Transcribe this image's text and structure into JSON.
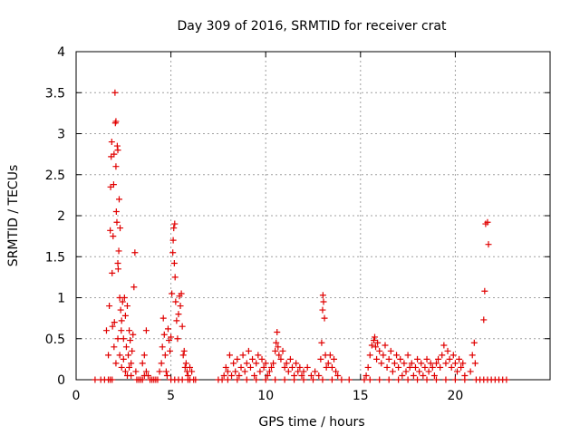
{
  "chart_data": {
    "type": "scatter",
    "title": "Day 309 of 2016, SRMTID for receiver crat",
    "xlabel": "GPS time / hours",
    "ylabel": "SRMTID / TECUs",
    "xlim": [
      0,
      25
    ],
    "ylim": [
      0,
      4
    ],
    "xticks": [
      0,
      5,
      10,
      15,
      20
    ],
    "yticks": [
      0,
      0.5,
      1,
      1.5,
      2,
      2.5,
      3,
      3.5,
      4
    ],
    "ytick_labels": [
      "0",
      "0.5",
      "1",
      "1.5",
      "2",
      "2.5",
      "3",
      "3.5",
      "4"
    ],
    "grid": true,
    "marker": "+",
    "series": [
      {
        "name": "SRMTID",
        "color": "#e00000",
        "points": [
          [
            1.0,
            0
          ],
          [
            1.3,
            0
          ],
          [
            1.5,
            0
          ],
          [
            1.7,
            0
          ],
          [
            1.8,
            0
          ],
          [
            1.9,
            0
          ],
          [
            1.6,
            0.6
          ],
          [
            1.7,
            0.3
          ],
          [
            1.75,
            0.9
          ],
          [
            1.8,
            1.82
          ],
          [
            1.82,
            2.35
          ],
          [
            1.85,
            2.72
          ],
          [
            1.88,
            2.9
          ],
          [
            1.9,
            1.3
          ],
          [
            1.92,
            0.65
          ],
          [
            1.95,
            1.75
          ],
          [
            1.98,
            2.38
          ],
          [
            2.0,
            2.75
          ],
          [
            2.02,
            0.7
          ],
          [
            2.05,
            3.5
          ],
          [
            2.07,
            3.13
          ],
          [
            2.1,
            3.15
          ],
          [
            2.1,
            2.6
          ],
          [
            2.12,
            2.05
          ],
          [
            2.15,
            1.92
          ],
          [
            2.17,
            2.85
          ],
          [
            2.2,
            2.8
          ],
          [
            2.2,
            1.42
          ],
          [
            2.22,
            1.35
          ],
          [
            2.25,
            1.57
          ],
          [
            2.27,
            2.2
          ],
          [
            2.3,
            1.0
          ],
          [
            2.32,
            1.85
          ],
          [
            2.35,
            0.85
          ],
          [
            2.38,
            0.6
          ],
          [
            2.4,
            0.72
          ],
          [
            2.45,
            0.95
          ],
          [
            2.5,
            0.5
          ],
          [
            2.55,
            1.0
          ],
          [
            2.6,
            0.78
          ],
          [
            2.65,
            0.4
          ],
          [
            2.7,
            0.9
          ],
          [
            2.75,
            0.3
          ],
          [
            2.8,
            0.6
          ],
          [
            2.85,
            0.48
          ],
          [
            2.9,
            0.2
          ],
          [
            2.95,
            0.35
          ],
          [
            3.0,
            0.55
          ],
          [
            3.05,
            1.13
          ],
          [
            3.1,
            1.55
          ],
          [
            3.15,
            0.1
          ],
          [
            2.0,
            0.4
          ],
          [
            2.1,
            0.2
          ],
          [
            2.2,
            0.5
          ],
          [
            2.3,
            0.3
          ],
          [
            2.4,
            0.15
          ],
          [
            2.5,
            0.25
          ],
          [
            2.6,
            0.1
          ],
          [
            2.7,
            0.05
          ],
          [
            2.8,
            0.15
          ],
          [
            2.9,
            0.05
          ],
          [
            3.2,
            0
          ],
          [
            3.3,
            0
          ],
          [
            3.4,
            0
          ],
          [
            3.5,
            0
          ],
          [
            3.6,
            0.05
          ],
          [
            3.7,
            0.1
          ],
          [
            3.8,
            0.05
          ],
          [
            3.9,
            0
          ],
          [
            4.0,
            0
          ],
          [
            3.5,
            0.2
          ],
          [
            3.6,
            0.3
          ],
          [
            3.7,
            0.6
          ],
          [
            4.1,
            0
          ],
          [
            4.2,
            0
          ],
          [
            4.3,
            0
          ],
          [
            4.4,
            0.1
          ],
          [
            4.5,
            0.2
          ],
          [
            4.55,
            0.4
          ],
          [
            4.6,
            0.75
          ],
          [
            4.65,
            0.55
          ],
          [
            4.7,
            0.3
          ],
          [
            4.75,
            0.1
          ],
          [
            4.8,
            0.05
          ],
          [
            4.85,
            0.62
          ],
          [
            4.9,
            0.48
          ],
          [
            4.95,
            0.35
          ],
          [
            5.0,
            0.52
          ],
          [
            5.05,
            1.05
          ],
          [
            5.1,
            1.55
          ],
          [
            5.12,
            1.7
          ],
          [
            5.15,
            1.85
          ],
          [
            5.18,
            1.42
          ],
          [
            5.2,
            1.9
          ],
          [
            5.22,
            1.25
          ],
          [
            5.25,
            0.95
          ],
          [
            5.3,
            0.72
          ],
          [
            5.35,
            0.5
          ],
          [
            5.4,
            0.8
          ],
          [
            5.45,
            1.02
          ],
          [
            5.5,
            0.9
          ],
          [
            5.55,
            1.05
          ],
          [
            5.6,
            0.65
          ],
          [
            5.65,
            0.3
          ],
          [
            5.7,
            0.35
          ],
          [
            5.75,
            0.15
          ],
          [
            5.8,
            0.2
          ],
          [
            5.85,
            0.1
          ],
          [
            5.9,
            0.05
          ],
          [
            6.0,
            0.15
          ],
          [
            6.1,
            0.1
          ],
          [
            6.2,
            0
          ],
          [
            6.3,
            0
          ],
          [
            6.0,
            0
          ],
          [
            5.9,
            0
          ],
          [
            5.0,
            0
          ],
          [
            5.2,
            0
          ],
          [
            5.4,
            0
          ],
          [
            5.6,
            0
          ],
          [
            7.5,
            0
          ],
          [
            7.7,
            0
          ],
          [
            7.8,
            0.05
          ],
          [
            7.9,
            0.15
          ],
          [
            8.0,
            0.1
          ],
          [
            8.1,
            0.3
          ],
          [
            8.2,
            0.05
          ],
          [
            8.3,
            0.2
          ],
          [
            8.4,
            0.1
          ],
          [
            8.5,
            0.25
          ],
          [
            8.6,
            0.05
          ],
          [
            8.7,
            0.15
          ],
          [
            8.8,
            0.3
          ],
          [
            8.9,
            0.1
          ],
          [
            9.0,
            0.2
          ],
          [
            9.1,
            0.35
          ],
          [
            9.2,
            0.15
          ],
          [
            9.3,
            0.25
          ],
          [
            9.4,
            0.05
          ],
          [
            9.5,
            0.2
          ],
          [
            9.6,
            0.3
          ],
          [
            9.7,
            0.1
          ],
          [
            9.8,
            0.25
          ],
          [
            9.9,
            0.15
          ],
          [
            10.0,
            0.2
          ],
          [
            10.1,
            0.05
          ],
          [
            10.2,
            0.1
          ],
          [
            10.3,
            0.15
          ],
          [
            10.4,
            0.2
          ],
          [
            10.5,
            0.35
          ],
          [
            10.55,
            0.45
          ],
          [
            10.6,
            0.58
          ],
          [
            10.65,
            0.4
          ],
          [
            10.7,
            0.3
          ],
          [
            10.8,
            0.25
          ],
          [
            10.9,
            0.35
          ],
          [
            11.0,
            0.15
          ],
          [
            11.1,
            0.2
          ],
          [
            11.2,
            0.1
          ],
          [
            11.3,
            0.25
          ],
          [
            11.4,
            0.15
          ],
          [
            11.5,
            0.05
          ],
          [
            11.6,
            0.2
          ],
          [
            11.7,
            0.1
          ],
          [
            11.8,
            0.15
          ],
          [
            11.9,
            0.05
          ],
          [
            12.0,
            0.1
          ],
          [
            12.2,
            0.15
          ],
          [
            12.4,
            0.05
          ],
          [
            12.6,
            0.1
          ],
          [
            12.8,
            0.05
          ],
          [
            12.9,
            0.25
          ],
          [
            12.95,
            0.45
          ],
          [
            13.0,
            0.85
          ],
          [
            13.02,
            1.03
          ],
          [
            13.05,
            0.95
          ],
          [
            13.1,
            0.75
          ],
          [
            13.15,
            0.3
          ],
          [
            13.2,
            0.15
          ],
          [
            13.3,
            0.2
          ],
          [
            13.4,
            0.3
          ],
          [
            13.5,
            0.15
          ],
          [
            13.6,
            0.25
          ],
          [
            13.7,
            0.1
          ],
          [
            13.8,
            0.05
          ],
          [
            8.0,
            0
          ],
          [
            8.5,
            0
          ],
          [
            9.0,
            0
          ],
          [
            9.5,
            0
          ],
          [
            10.0,
            0
          ],
          [
            10.5,
            0
          ],
          [
            11.0,
            0
          ],
          [
            11.5,
            0
          ],
          [
            12.0,
            0
          ],
          [
            12.5,
            0
          ],
          [
            13.0,
            0
          ],
          [
            13.5,
            0
          ],
          [
            14.0,
            0
          ],
          [
            14.4,
            0
          ],
          [
            15.2,
            0
          ],
          [
            15.3,
            0.05
          ],
          [
            15.4,
            0.15
          ],
          [
            15.5,
            0.3
          ],
          [
            15.6,
            0.42
          ],
          [
            15.7,
            0.48
          ],
          [
            15.75,
            0.52
          ],
          [
            15.8,
            0.4
          ],
          [
            15.85,
            0.25
          ],
          [
            15.9,
            0.45
          ],
          [
            16.0,
            0.35
          ],
          [
            16.1,
            0.2
          ],
          [
            16.2,
            0.3
          ],
          [
            16.3,
            0.42
          ],
          [
            16.4,
            0.15
          ],
          [
            16.5,
            0.25
          ],
          [
            16.6,
            0.35
          ],
          [
            16.7,
            0.1
          ],
          [
            16.8,
            0.2
          ],
          [
            16.9,
            0.3
          ],
          [
            17.0,
            0.15
          ],
          [
            17.1,
            0.25
          ],
          [
            17.2,
            0.05
          ],
          [
            17.3,
            0.2
          ],
          [
            17.4,
            0.1
          ],
          [
            17.5,
            0.3
          ],
          [
            17.6,
            0.15
          ],
          [
            17.7,
            0.2
          ],
          [
            17.8,
            0.05
          ],
          [
            17.9,
            0.15
          ],
          [
            18.0,
            0.25
          ],
          [
            18.1,
            0.1
          ],
          [
            18.2,
            0.2
          ],
          [
            18.3,
            0.05
          ],
          [
            18.4,
            0.15
          ],
          [
            18.5,
            0.25
          ],
          [
            18.6,
            0.1
          ],
          [
            18.7,
            0.2
          ],
          [
            18.8,
            0.15
          ],
          [
            18.9,
            0.05
          ],
          [
            19.0,
            0.2
          ],
          [
            19.1,
            0.25
          ],
          [
            19.2,
            0.15
          ],
          [
            19.3,
            0.3
          ],
          [
            19.4,
            0.42
          ],
          [
            19.5,
            0.2
          ],
          [
            19.6,
            0.35
          ],
          [
            19.7,
            0.25
          ],
          [
            19.8,
            0.15
          ],
          [
            19.9,
            0.3
          ],
          [
            20.0,
            0.2
          ],
          [
            20.1,
            0.1
          ],
          [
            20.2,
            0.25
          ],
          [
            20.3,
            0.15
          ],
          [
            20.4,
            0.2
          ],
          [
            20.5,
            0.05
          ],
          [
            15.5,
            0
          ],
          [
            16.0,
            0
          ],
          [
            16.5,
            0
          ],
          [
            17.0,
            0
          ],
          [
            17.5,
            0
          ],
          [
            18.0,
            0
          ],
          [
            18.5,
            0
          ],
          [
            19.0,
            0
          ],
          [
            19.5,
            0
          ],
          [
            20.0,
            0
          ],
          [
            20.5,
            0
          ],
          [
            20.8,
            0.1
          ],
          [
            20.9,
            0.3
          ],
          [
            21.0,
            0.45
          ],
          [
            21.05,
            0.2
          ],
          [
            21.1,
            0
          ],
          [
            21.3,
            0
          ],
          [
            21.5,
            0.73
          ],
          [
            21.55,
            1.08
          ],
          [
            21.6,
            1.9
          ],
          [
            21.7,
            1.92
          ],
          [
            21.75,
            1.65
          ],
          [
            21.5,
            0
          ],
          [
            21.7,
            0
          ],
          [
            21.9,
            0
          ],
          [
            22.1,
            0
          ],
          [
            22.3,
            0
          ],
          [
            22.5,
            0
          ],
          [
            22.7,
            0
          ]
        ]
      }
    ]
  }
}
